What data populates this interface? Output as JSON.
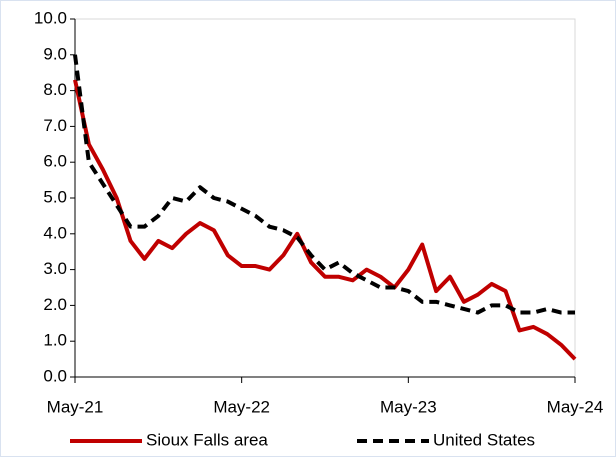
{
  "chart_data": {
    "type": "line",
    "categories": [
      "May-21",
      null,
      null,
      null,
      null,
      null,
      null,
      null,
      null,
      null,
      null,
      null,
      "May-22",
      null,
      null,
      null,
      null,
      null,
      null,
      null,
      null,
      null,
      null,
      null,
      "May-23",
      null,
      null,
      null,
      null,
      null,
      null,
      null,
      null,
      null,
      null,
      null,
      "May-24"
    ],
    "series": [
      {
        "name": "Sioux Falls area",
        "color": "#c00000",
        "dash": "solid",
        "values": [
          8.3,
          6.5,
          5.8,
          5.0,
          3.8,
          3.3,
          3.8,
          3.6,
          4.0,
          4.3,
          4.1,
          3.4,
          3.1,
          3.1,
          3.0,
          3.4,
          4.0,
          3.2,
          2.8,
          2.8,
          2.7,
          3.0,
          2.8,
          2.5,
          3.0,
          3.7,
          2.4,
          2.8,
          2.1,
          2.3,
          2.6,
          2.4,
          1.3,
          1.4,
          1.2,
          0.9,
          0.5
        ]
      },
      {
        "name": "United States",
        "color": "#000000",
        "dash": "dashed",
        "values": [
          9.0,
          6.0,
          5.4,
          4.8,
          4.2,
          4.2,
          4.5,
          5.0,
          4.9,
          5.3,
          5.0,
          4.9,
          4.7,
          4.5,
          4.2,
          4.1,
          3.9,
          3.4,
          3.0,
          3.2,
          2.9,
          2.7,
          2.5,
          2.5,
          2.4,
          2.1,
          2.1,
          2.0,
          1.9,
          1.8,
          2.0,
          2.0,
          1.8,
          1.8,
          1.9,
          1.8,
          1.8
        ]
      }
    ],
    "ylim": [
      0,
      10
    ],
    "yticks": [
      {
        "value": 0,
        "label": "0.0"
      },
      {
        "value": 1,
        "label": "1.0"
      },
      {
        "value": 2,
        "label": "2.0"
      },
      {
        "value": 3,
        "label": "3.0"
      },
      {
        "value": 4,
        "label": "4.0"
      },
      {
        "value": 5,
        "label": "5.0"
      },
      {
        "value": 6,
        "label": "6.0"
      },
      {
        "value": 7,
        "label": "7.0"
      },
      {
        "value": 8,
        "label": "8.0"
      },
      {
        "value": 9,
        "label": "9.0"
      },
      {
        "value": 10,
        "label": "10.0"
      }
    ],
    "grid": false,
    "legend": "bottom"
  }
}
